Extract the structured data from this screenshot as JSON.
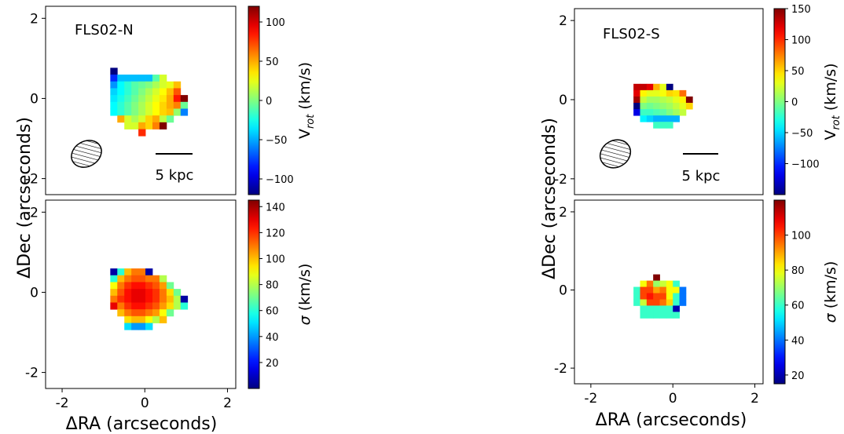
{
  "figure": {
    "left_group": {
      "label": "FLS02-N",
      "ylabel": "ΔDec (arcseconds)",
      "xlabel": "ΔRA (arcseconds)",
      "scalebar": "5 kpc"
    },
    "right_group": {
      "label": "FLS02-S",
      "ylabel": "ΔDec (arcseconds)",
      "xlabel": "ΔRA (arcseconds)",
      "scalebar": "5 kpc"
    }
  },
  "chart_data": [
    {
      "type": "heatmap",
      "id": "fls02n-velocity",
      "title": "FLS02-N",
      "quantity": "velocity",
      "xlabel": "",
      "ylabel": "",
      "xlim": [
        -2.4,
        2.2
      ],
      "ylim": [
        -2.4,
        2.3
      ],
      "xticks": [],
      "yticks": [
        -2,
        0,
        2
      ],
      "colorbar": {
        "label": "V_rot (km/s)",
        "min": -120,
        "max": 120,
        "ticks": [
          -100,
          -50,
          0,
          50,
          100
        ]
      },
      "pixel_size": 0.17,
      "rows": [
        {
          "y": 0.68,
          "x0": -0.75,
          "values": [
            -120
          ]
        },
        {
          "y": 0.51,
          "x0": -0.75,
          "values": [
            -80,
            -45,
            -45,
            -45,
            -45,
            -45,
            -10,
            20
          ]
        },
        {
          "y": 0.34,
          "x0": -0.75,
          "values": [
            -55,
            -30,
            -20,
            -10,
            -5,
            0,
            10,
            20,
            25,
            45
          ]
        },
        {
          "y": 0.17,
          "x0": -0.75,
          "values": [
            -40,
            -30,
            -20,
            -10,
            0,
            10,
            20,
            30,
            45,
            70
          ]
        },
        {
          "y": 0.0,
          "x0": -0.75,
          "values": [
            -35,
            -25,
            -15,
            -5,
            5,
            15,
            25,
            35,
            50,
            85,
            120
          ]
        },
        {
          "y": -0.17,
          "x0": -0.75,
          "values": [
            -30,
            -20,
            -10,
            0,
            10,
            20,
            30,
            40,
            50,
            60,
            -5
          ]
        },
        {
          "y": -0.34,
          "x0": -0.75,
          "values": [
            -30,
            -20,
            -10,
            0,
            10,
            20,
            30,
            40,
            45,
            5,
            -60
          ]
        },
        {
          "y": -0.51,
          "x0": -0.58,
          "values": [
            50,
            20,
            10,
            20,
            40,
            50,
            15,
            -5
          ]
        },
        {
          "y": -0.68,
          "x0": -0.41,
          "values": [
            20,
            20,
            50,
            40,
            60,
            120
          ]
        },
        {
          "y": -0.85,
          "x0": -0.07,
          "values": [
            80
          ]
        }
      ]
    },
    {
      "type": "heatmap",
      "id": "fls02n-dispersion",
      "quantity": "dispersion",
      "xlabel": "",
      "ylabel": "",
      "xlim": [
        -2.4,
        2.2
      ],
      "ylim": [
        -2.4,
        2.3
      ],
      "xticks": [
        -2,
        0,
        2
      ],
      "yticks": [
        -2,
        0,
        2
      ],
      "colorbar": {
        "label": "σ (km/s)",
        "min": 0,
        "max": 145,
        "ticks": [
          20,
          40,
          60,
          80,
          100,
          120,
          140
        ]
      },
      "pixel_size": 0.17,
      "rows": [
        {
          "y": 0.51,
          "x0": -0.75,
          "values": [
            5,
            60,
            100,
            110,
            110,
            5
          ]
        },
        {
          "y": 0.34,
          "x0": -0.75,
          "values": [
            60,
            100,
            110,
            115,
            115,
            110,
            110,
            80
          ]
        },
        {
          "y": 0.17,
          "x0": -0.75,
          "values": [
            90,
            110,
            120,
            125,
            125,
            120,
            115,
            105,
            70
          ]
        },
        {
          "y": 0.0,
          "x0": -0.75,
          "values": [
            100,
            115,
            125,
            130,
            130,
            125,
            120,
            110,
            95,
            70
          ]
        },
        {
          "y": -0.17,
          "x0": -0.75,
          "values": [
            110,
            120,
            125,
            130,
            130,
            125,
            120,
            110,
            100,
            80,
            5
          ]
        },
        {
          "y": -0.34,
          "x0": -0.75,
          "values": [
            130,
            110,
            120,
            125,
            125,
            120,
            115,
            105,
            95,
            80,
            60
          ]
        },
        {
          "y": -0.51,
          "x0": -0.58,
          "values": [
            100,
            110,
            115,
            115,
            110,
            105,
            90,
            70
          ]
        },
        {
          "y": -0.68,
          "x0": -0.41,
          "values": [
            95,
            100,
            100,
            90,
            80,
            100
          ]
        },
        {
          "y": -0.85,
          "x0": -0.41,
          "values": [
            50,
            40,
            40,
            50
          ]
        }
      ]
    },
    {
      "type": "heatmap",
      "id": "fls02s-velocity",
      "title": "FLS02-S",
      "quantity": "velocity",
      "xlabel": "",
      "ylabel": "",
      "xlim": [
        -2.4,
        2.2
      ],
      "ylim": [
        -2.4,
        2.3
      ],
      "xticks": [],
      "yticks": [
        -2,
        0,
        2
      ],
      "colorbar": {
        "label": "V_rot (km/s)",
        "min": -150,
        "max": 150,
        "ticks": [
          -100,
          -50,
          0,
          50,
          100,
          150
        ]
      },
      "pixel_size": 0.16,
      "rows": [
        {
          "y": 0.32,
          "x0": -0.88,
          "values": [
            130,
            130,
            120,
            60,
            30,
            -150
          ]
        },
        {
          "y": 0.16,
          "x0": -0.88,
          "values": [
            120,
            40,
            30,
            30,
            35,
            50,
            45,
            80
          ]
        },
        {
          "y": 0.0,
          "x0": -0.88,
          "values": [
            140,
            20,
            10,
            10,
            15,
            20,
            30,
            40,
            150
          ]
        },
        {
          "y": -0.16,
          "x0": -0.88,
          "values": [
            -150,
            0,
            -5,
            0,
            5,
            10,
            20,
            30,
            50
          ]
        },
        {
          "y": -0.32,
          "x0": -0.88,
          "values": [
            -120,
            -20,
            -20,
            -15,
            -10,
            0,
            10,
            20
          ]
        },
        {
          "y": -0.48,
          "x0": -0.72,
          "values": [
            -40,
            -50,
            -60,
            -60,
            -60,
            -60
          ]
        },
        {
          "y": -0.64,
          "x0": -0.4,
          "values": [
            -20,
            -20,
            -20
          ]
        }
      ]
    },
    {
      "type": "heatmap",
      "id": "fls02s-dispersion",
      "quantity": "dispersion",
      "xlabel": "",
      "ylabel": "",
      "xlim": [
        -2.4,
        2.2
      ],
      "ylim": [
        -2.4,
        2.3
      ],
      "xticks": [
        -2,
        0,
        2
      ],
      "yticks": [
        -2,
        0,
        2
      ],
      "colorbar": {
        "label": "σ (km/s)",
        "min": 15,
        "max": 120,
        "ticks": [
          20,
          40,
          60,
          80,
          100
        ]
      },
      "pixel_size": 0.16,
      "rows": [
        {
          "y": 0.32,
          "x0": -0.4,
          "values": [
            120
          ]
        },
        {
          "y": 0.16,
          "x0": -0.72,
          "values": [
            80,
            95,
            70,
            75,
            80,
            60
          ]
        },
        {
          "y": 0.0,
          "x0": -0.88,
          "values": [
            60,
            100,
            100,
            90,
            95,
            80,
            80,
            40
          ]
        },
        {
          "y": -0.16,
          "x0": -0.88,
          "values": [
            60,
            100,
            105,
            100,
            100,
            80,
            60,
            40
          ]
        },
        {
          "y": -0.32,
          "x0": -0.88,
          "values": [
            60,
            75,
            100,
            100,
            95,
            85,
            60,
            40
          ]
        },
        {
          "y": -0.48,
          "x0": -0.72,
          "values": [
            60,
            60,
            60,
            60,
            60,
            20
          ]
        },
        {
          "y": -0.64,
          "x0": -0.72,
          "values": [
            60,
            60,
            60,
            60,
            60,
            60
          ]
        }
      ]
    }
  ]
}
